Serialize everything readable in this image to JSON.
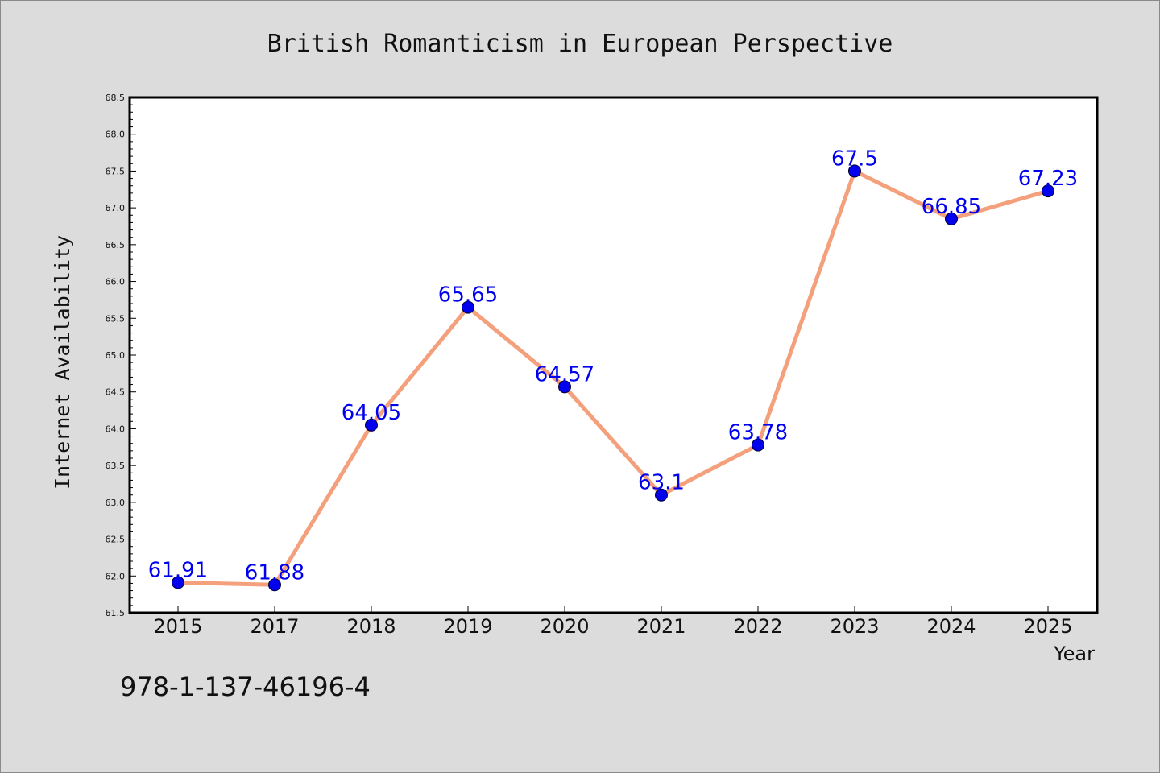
{
  "chart_data": {
    "type": "line",
    "title": "British Romanticism in European Perspective",
    "xlabel": "Year",
    "ylabel": "Internet Availability",
    "categories": [
      "2015",
      "2017",
      "2018",
      "2019",
      "2020",
      "2021",
      "2022",
      "2023",
      "2024",
      "2025"
    ],
    "values": [
      61.91,
      61.88,
      64.05,
      65.65,
      64.57,
      63.1,
      63.78,
      67.5,
      66.85,
      67.23
    ],
    "data_labels": [
      "61.91",
      "61.88",
      "64.05",
      "65.65",
      "64.57",
      "63.1",
      "63.78",
      "67.5",
      "66.85",
      "67.23"
    ],
    "ylim": [
      61.5,
      68.5
    ],
    "yticks": [
      "61.5",
      "62.0",
      "62.5",
      "63.0",
      "63.5",
      "64.0",
      "64.5",
      "65.0",
      "65.5",
      "66.0",
      "66.5",
      "67.0",
      "67.5",
      "68.0",
      "68.5"
    ],
    "grid": false,
    "line_color": "#f4a07c",
    "marker_color": "#0000ee",
    "label_color": "#0000ee"
  },
  "annotation": {
    "isbn": "978-1-137-46196-4"
  }
}
